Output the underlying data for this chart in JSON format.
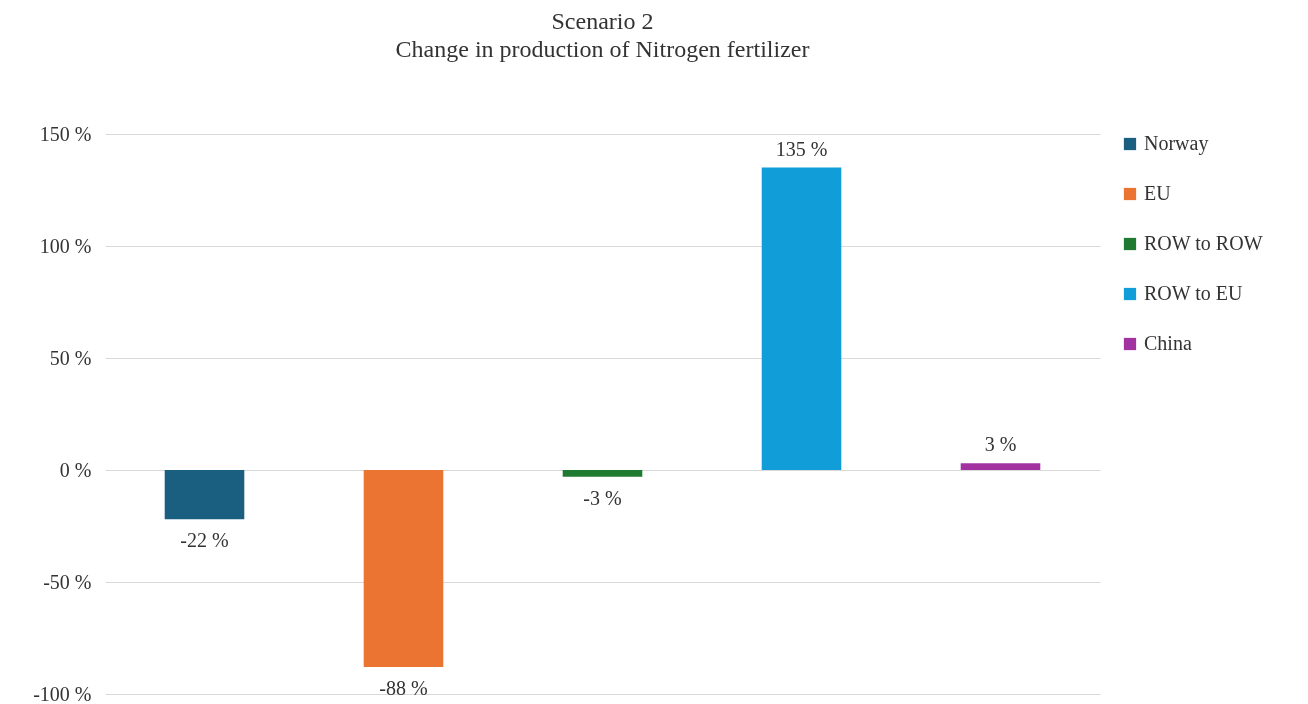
{
  "chart_data": {
    "type": "bar",
    "title": "Scenario 2",
    "subtitle": "Change in production of Nitrogen fertilizer",
    "categories": [
      null,
      null,
      null,
      null,
      null
    ],
    "series": [
      {
        "name": "Norway",
        "color": "#1a5f80",
        "values": [
          -22,
          null,
          null,
          null,
          null
        ],
        "value_labels": [
          "-22 %",
          null,
          null,
          null,
          null
        ]
      },
      {
        "name": "EU",
        "color": "#ec7432",
        "values": [
          null,
          -88,
          null,
          null,
          null
        ],
        "value_labels": [
          null,
          "-88 %",
          null,
          null,
          null
        ]
      },
      {
        "name": "ROW to ROW",
        "color": "#1e7a30",
        "values": [
          null,
          null,
          -3,
          null,
          null
        ],
        "value_labels": [
          null,
          null,
          "-3 %",
          null,
          null
        ]
      },
      {
        "name": "ROW to EU",
        "color": "#119ed8",
        "values": [
          null,
          null,
          null,
          135,
          null
        ],
        "value_labels": [
          null,
          null,
          null,
          "135 %",
          null
        ]
      },
      {
        "name": "China",
        "color": "#a232a0",
        "values": [
          null,
          null,
          null,
          null,
          3
        ],
        "value_labels": [
          null,
          null,
          null,
          null,
          "3 %"
        ]
      }
    ],
    "ylim": [
      -100,
      150
    ],
    "yticks": [
      {
        "value": -100,
        "label": "-100 %"
      },
      {
        "value": -50,
        "label": "-50 %"
      },
      {
        "value": 0,
        "label": "0 %"
      },
      {
        "value": 50,
        "label": "50 %"
      },
      {
        "value": 100,
        "label": "100 %"
      },
      {
        "value": 150,
        "label": "150 %"
      }
    ],
    "grid": "y",
    "legend": "right",
    "tick_labels": "y"
  }
}
